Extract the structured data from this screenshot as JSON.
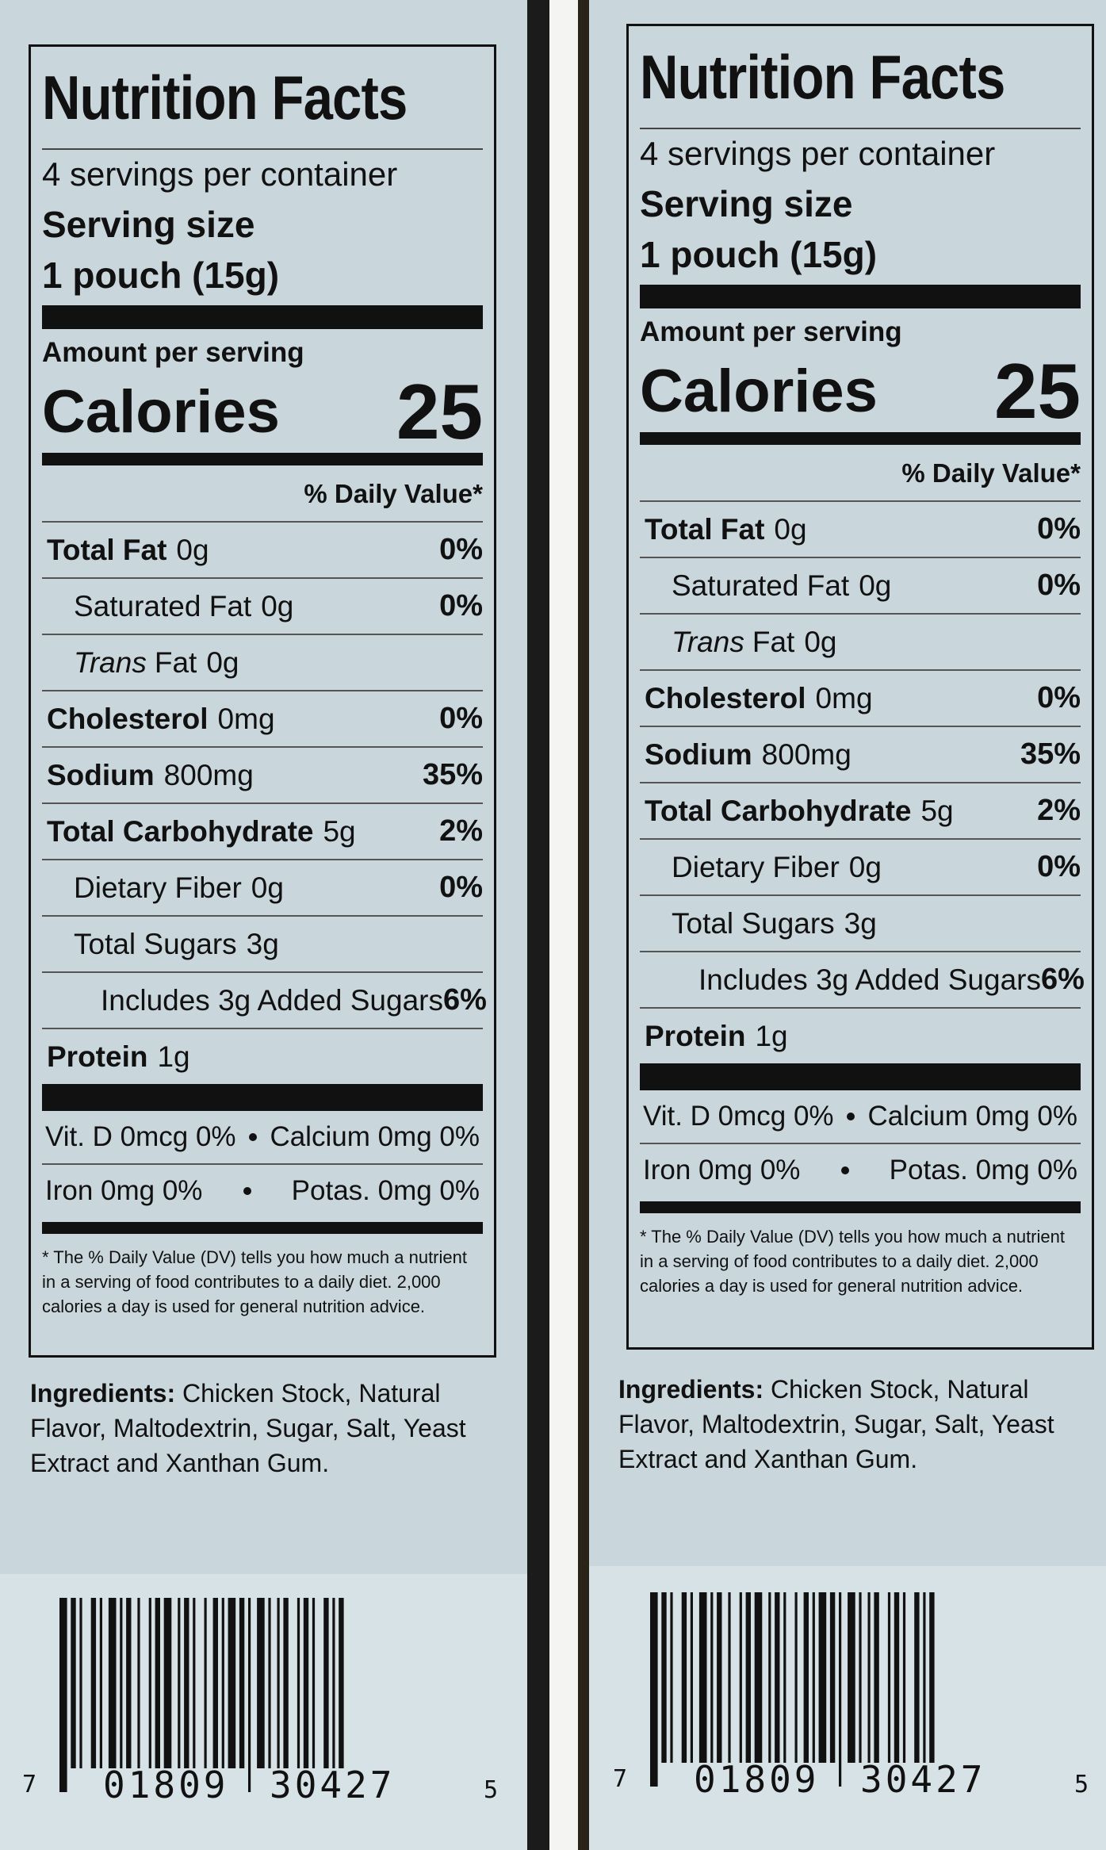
{
  "panels": [
    {
      "title": "Nutrition Facts",
      "servings": "4 servings per container",
      "serving_size_label": "Serving size",
      "serving_size": "1 pouch (15g)",
      "amount_per_serving": "Amount per serving",
      "calories_label": "Calories",
      "calories": 25,
      "dv_header": "% Daily Value*",
      "rows": [
        {
          "name": "Total Fat",
          "amount": "0g",
          "dv": "0%"
        },
        {
          "name": "Saturated Fat",
          "amount": "0g",
          "dv": "0%"
        },
        {
          "prefix": "Trans",
          "name": "Fat",
          "amount": "0g"
        },
        {
          "name": "Cholesterol",
          "amount": "0mg",
          "dv": "0%"
        },
        {
          "name": "Sodium",
          "amount": "800mg",
          "dv": "35%"
        },
        {
          "name": "Total Carbohydrate",
          "amount": "5g",
          "dv": "2%"
        },
        {
          "name": "Dietary Fiber",
          "amount": "0g",
          "dv": "0%"
        },
        {
          "name": "Total Sugars",
          "amount": "3g"
        },
        {
          "name": "Includes 3g Added Sugars",
          "dv": "6%"
        },
        {
          "name": "Protein",
          "amount": "1g"
        }
      ],
      "vitamins": [
        [
          "Vit. D 0mcg 0%",
          "Calcium 0mg 0%"
        ],
        [
          "Iron 0mg 0%",
          "Potas. 0mg 0%"
        ]
      ],
      "footnote": "* The % Daily Value (DV) tells you how much a nutrient in a serving of food contributes to a daily diet. 2,000 calories a day is used for general nutrition advice.",
      "ingredients_label": "Ingredients:",
      "ingredients": "Chicken Stock, Natural Flavor, Maltodextrin, Sugar, Salt, Yeast Extract and Xanthan Gum.",
      "barcode": [
        "7",
        "01809",
        "30427",
        "5"
      ]
    },
    {
      "title": "Nutrition Facts",
      "servings": "4 servings per container",
      "serving_size_label": "Serving size",
      "serving_size": "1 pouch (15g)",
      "amount_per_serving": "Amount per serving",
      "calories_label": "Calories",
      "calories": 25,
      "dv_header": "% Daily Value*",
      "rows": [
        {
          "name": "Total Fat",
          "amount": "0g",
          "dv": "0%"
        },
        {
          "name": "Saturated Fat",
          "amount": "0g",
          "dv": "0%"
        },
        {
          "prefix": "Trans",
          "name": "Fat",
          "amount": "0g"
        },
        {
          "name": "Cholesterol",
          "amount": "0mg",
          "dv": "0%"
        },
        {
          "name": "Sodium",
          "amount": "800mg",
          "dv": "35%"
        },
        {
          "name": "Total Carbohydrate",
          "amount": "5g",
          "dv": "2%"
        },
        {
          "name": "Dietary Fiber",
          "amount": "0g",
          "dv": "0%"
        },
        {
          "name": "Total Sugars",
          "amount": "3g"
        },
        {
          "name": "Includes 3g Added Sugars",
          "dv": "6%"
        },
        {
          "name": "Protein",
          "amount": "1g"
        }
      ],
      "vitamins": [
        [
          "Vit. D 0mcg 0%",
          "Calcium 0mg 0%"
        ],
        [
          "Iron 0mg 0%",
          "Potas. 0mg 0%"
        ]
      ],
      "footnote": "* The % Daily Value (DV) tells you how much a nutrient in a serving of food contributes to a daily diet. 2,000 calories a day is used for general nutrition advice.",
      "ingredients_label": "Ingredients:",
      "ingredients": "Chicken Stock, Natural Flavor, Maltodextrin, Sugar, Salt, Yeast Extract and Xanthan Gum.",
      "barcode": [
        "7",
        "01809",
        "30427",
        "5"
      ]
    }
  ]
}
